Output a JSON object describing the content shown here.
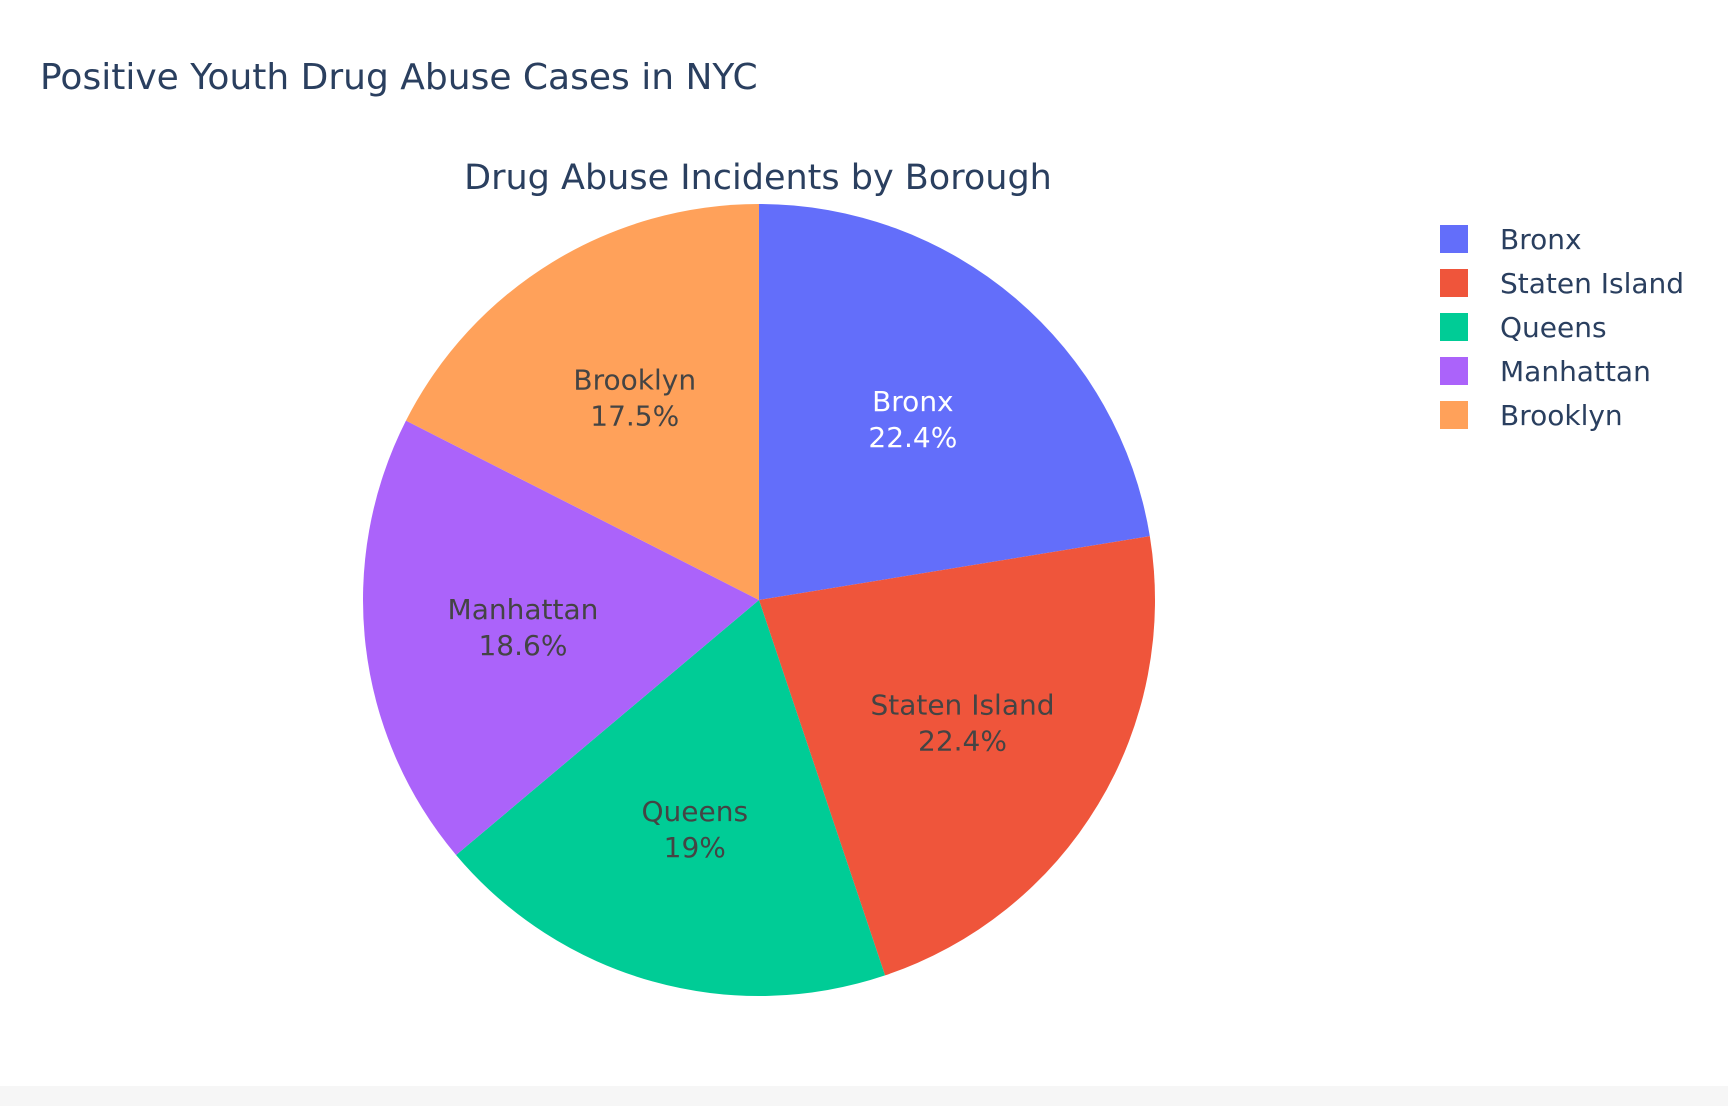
{
  "chart_data": {
    "type": "pie",
    "title": "Positive Youth Drug Abuse Cases in NYC",
    "subtitle": "Drug Abuse Incidents by Borough",
    "categories": [
      "Bronx",
      "Staten Island",
      "Queens",
      "Manhattan",
      "Brooklyn"
    ],
    "values": [
      22.4,
      22.4,
      19,
      18.6,
      17.5
    ],
    "labels": [
      "22.4%",
      "22.4%",
      "19%",
      "18.6%",
      "17.5%"
    ],
    "colors": [
      "#636efa",
      "#ef553b",
      "#00cc96",
      "#ab63fa",
      "#ffa15a"
    ],
    "label_text_colors": [
      "#ffffff",
      "#444444",
      "#444444",
      "#444444",
      "#444444"
    ],
    "direction": "clockwise",
    "start": "top",
    "legend": {
      "placement": "top-right",
      "items": [
        "Bronx",
        "Staten Island",
        "Queens",
        "Manhattan",
        "Brooklyn"
      ]
    }
  }
}
